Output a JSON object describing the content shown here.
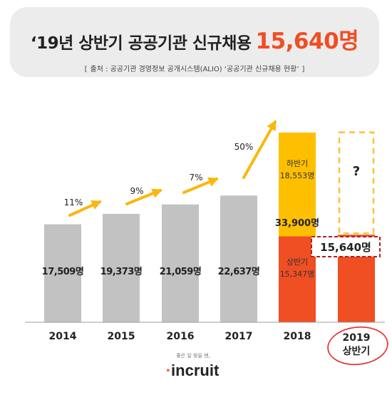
{
  "header": {
    "title_main": "‘19년 상반기 공공기관 신규채용",
    "title_highlight": "15,640명",
    "source": "출처 : 공공기관 경영정보 공개시스템(ALIO) ‘공공기관 신규채용 현황’",
    "bracket_open": "[",
    "bracket_close": "]"
  },
  "colors": {
    "gray_bar": "#c2c2c2",
    "orange": "#f04e23",
    "yellow": "#fdbf00",
    "growth_arrow": "#f9b80d",
    "dashed_box": "#f9c23c",
    "dashed_label_border": "#b71c1c",
    "circle": "#e53935"
  },
  "chart_data": {
    "type": "bar",
    "categories": [
      "2014",
      "2015",
      "2016",
      "2017",
      "2018",
      "2019\n상반기"
    ],
    "values": [
      17509,
      19373,
      21059,
      22637,
      33900,
      15640
    ],
    "value_labels": [
      "17,509명",
      "19,373명",
      "21,059명",
      "22,637명",
      "33,900명",
      "15,640명"
    ],
    "growth_labels": [
      "11%",
      "9%",
      "7%",
      "50%"
    ],
    "stack_2018": [
      {
        "name": "상반기",
        "value": 15347,
        "label": "15,347명",
        "color": "#f04e23"
      },
      {
        "name": "하반기",
        "value": 18553,
        "label": "18,553명",
        "color": "#fdbf00"
      }
    ],
    "unknown_label": "?",
    "year_2019_line1": "2019",
    "year_2019_line2": "상반기"
  },
  "logo": {
    "tagline": "좋은 일 찾을 땐,",
    "name": "incruit"
  }
}
